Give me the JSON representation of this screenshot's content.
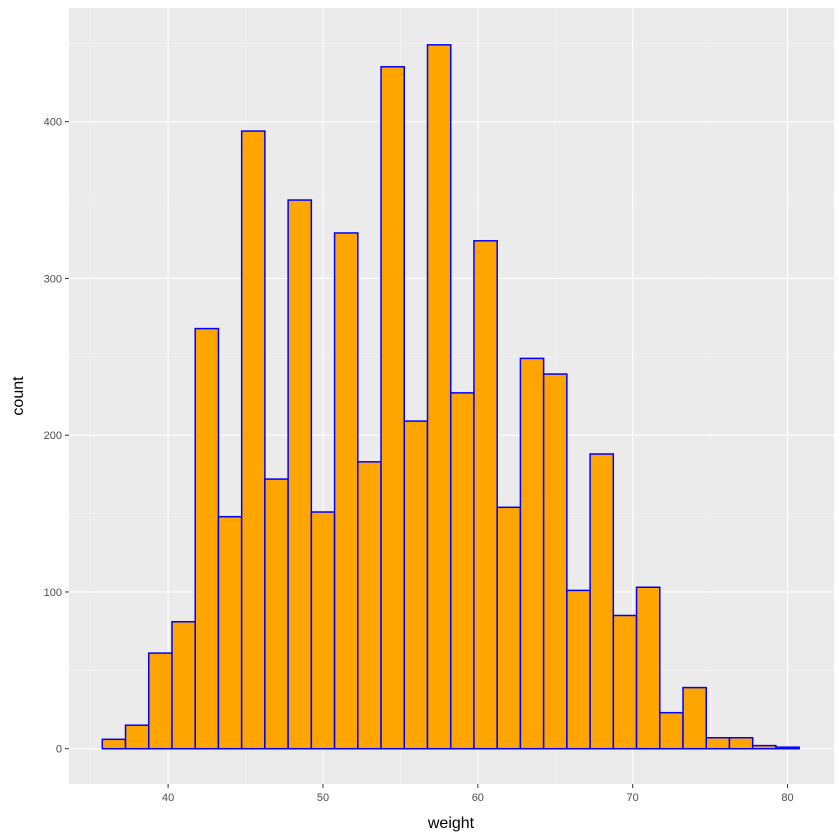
{
  "chart_data": {
    "type": "bar",
    "subtype": "histogram",
    "xlabel": "weight",
    "ylabel": "count",
    "xlim": [
      33.6,
      83.0
    ],
    "ylim": [
      -22.5,
      472.5
    ],
    "x_ticks": [
      40,
      50,
      60,
      70,
      80
    ],
    "y_ticks": [
      0,
      100,
      200,
      300,
      400
    ],
    "bin_width": 1.5,
    "bin_centers": [
      36.5,
      38.0,
      39.5,
      41.0,
      42.5,
      44.0,
      45.5,
      47.0,
      48.5,
      50.0,
      51.5,
      53.0,
      54.5,
      56.0,
      57.5,
      59.0,
      60.5,
      62.0,
      63.5,
      65.0,
      66.5,
      68.0,
      69.5,
      71.0,
      72.5,
      74.0,
      75.5,
      77.0,
      78.5,
      80.0
    ],
    "values": [
      6,
      15,
      61,
      81,
      268,
      148,
      394,
      172,
      350,
      151,
      329,
      183,
      435,
      209,
      449,
      227,
      324,
      154,
      249,
      239,
      101,
      188,
      85,
      103,
      23,
      39,
      7,
      7,
      2,
      1
    ],
    "grid": true,
    "colors": {
      "fill": "#FFA500",
      "outline": "#0000FF",
      "panel_background": "#EBEBEB",
      "grid_major": "#FFFFFF",
      "grid_minor": "#F5F5F5"
    }
  }
}
